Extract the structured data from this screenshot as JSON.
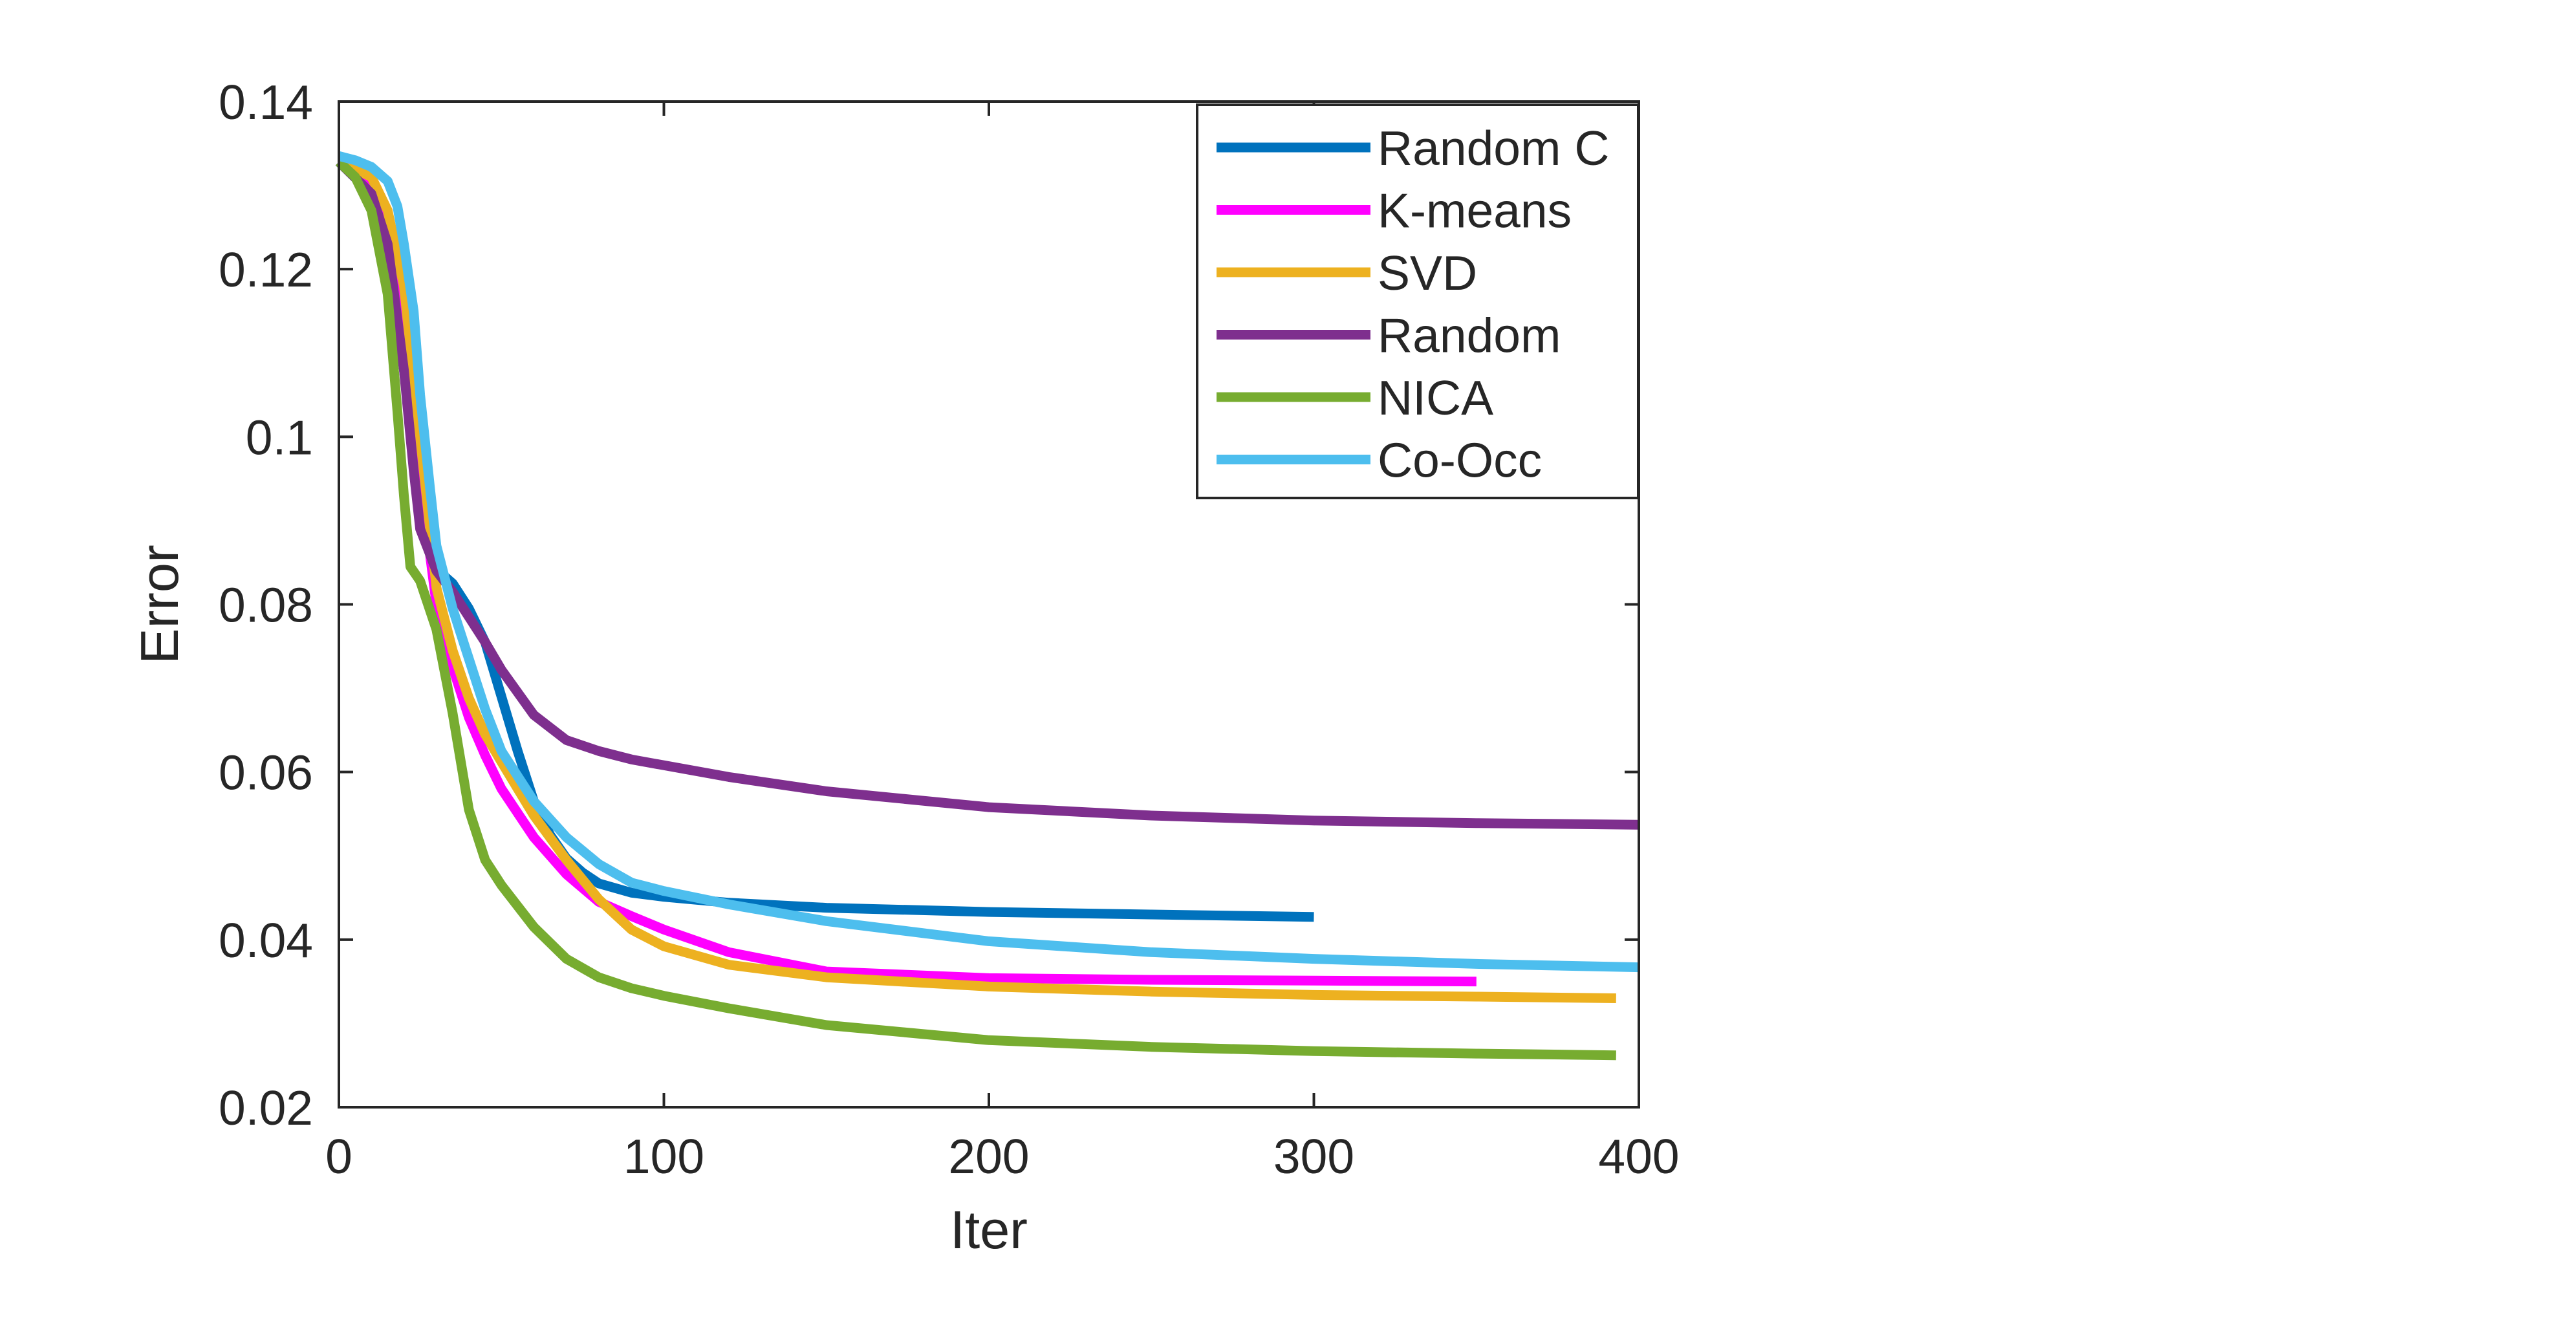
{
  "chart_data": {
    "type": "line",
    "title": "",
    "xlabel": "Iter",
    "ylabel": "Error",
    "xlim": [
      0,
      400
    ],
    "ylim": [
      0.02,
      0.14
    ],
    "xticks": [
      0,
      100,
      200,
      300,
      400
    ],
    "yticks": [
      0.02,
      0.04,
      0.06,
      0.08,
      0.1,
      0.12,
      0.14
    ],
    "xtick_labels": [
      "0",
      "100",
      "200",
      "300",
      "400"
    ],
    "ytick_labels": [
      "0.02",
      "0.04",
      "0.06",
      "0.08",
      "0.1",
      "0.12",
      "0.14"
    ],
    "grid": false,
    "legend_position": "top-right",
    "series": [
      {
        "name": "Random C",
        "color": "#0072bd",
        "x": [
          0,
          10,
          15,
          20,
          25,
          30,
          35,
          40,
          45,
          50,
          55,
          60,
          65,
          70,
          75,
          80,
          90,
          100,
          120,
          150,
          200,
          250,
          300
        ],
        "y": [
          0.1328,
          0.129,
          0.122,
          0.108,
          0.091,
          0.0842,
          0.0825,
          0.0795,
          0.0755,
          0.069,
          0.0625,
          0.0565,
          0.0525,
          0.0497,
          0.048,
          0.0467,
          0.0456,
          0.0451,
          0.0444,
          0.0438,
          0.0433,
          0.043,
          0.0427
        ]
      },
      {
        "name": "K-means",
        "color": "#ff00ff",
        "x": [
          0,
          10,
          15,
          20,
          25,
          30,
          35,
          40,
          45,
          50,
          60,
          70,
          80,
          90,
          100,
          120,
          150,
          200,
          250,
          300,
          350
        ],
        "y": [
          0.1328,
          0.13,
          0.125,
          0.112,
          0.095,
          0.08,
          0.0725,
          0.0665,
          0.062,
          0.058,
          0.0522,
          0.0478,
          0.0445,
          0.0428,
          0.0412,
          0.0385,
          0.0362,
          0.0354,
          0.0352,
          0.0351,
          0.035
        ]
      },
      {
        "name": "SVD",
        "color": "#edb120",
        "x": [
          0,
          10,
          15,
          20,
          25,
          30,
          35,
          40,
          45,
          50,
          60,
          70,
          80,
          90,
          100,
          120,
          150,
          200,
          250,
          300,
          350,
          393
        ],
        "y": [
          0.1328,
          0.131,
          0.127,
          0.118,
          0.1,
          0.082,
          0.0745,
          0.0688,
          0.0645,
          0.0612,
          0.0548,
          0.0495,
          0.0448,
          0.0412,
          0.0392,
          0.037,
          0.0355,
          0.0344,
          0.0338,
          0.0334,
          0.0332,
          0.033
        ]
      },
      {
        "name": "Random",
        "color": "#7e2f8e",
        "x": [
          0,
          10,
          15,
          20,
          23,
          25,
          30,
          35,
          40,
          45,
          50,
          60,
          70,
          80,
          90,
          100,
          120,
          150,
          200,
          250,
          300,
          350,
          400
        ],
        "y": [
          0.1328,
          0.129,
          0.123,
          0.108,
          0.096,
          0.089,
          0.084,
          0.0815,
          0.0785,
          0.0755,
          0.0722,
          0.0668,
          0.0638,
          0.0625,
          0.0615,
          0.0608,
          0.0594,
          0.0577,
          0.0558,
          0.0548,
          0.0542,
          0.0539,
          0.0537
        ]
      },
      {
        "name": "NICA",
        "color": "#77ac30",
        "x": [
          0,
          5,
          10,
          15,
          18,
          20,
          22,
          25,
          30,
          35,
          40,
          45,
          50,
          60,
          70,
          80,
          90,
          100,
          120,
          150,
          200,
          250,
          300,
          350,
          393
        ],
        "y": [
          0.1328,
          0.131,
          0.127,
          0.117,
          0.103,
          0.093,
          0.0845,
          0.0828,
          0.077,
          0.067,
          0.0555,
          0.0495,
          0.0465,
          0.0415,
          0.0377,
          0.0355,
          0.0342,
          0.0333,
          0.0318,
          0.0298,
          0.028,
          0.0272,
          0.0267,
          0.0264,
          0.0262
        ]
      },
      {
        "name": "Co-Occ",
        "color": "#4dbeee",
        "x": [
          0,
          5,
          10,
          15,
          18,
          20,
          23,
          25,
          28,
          30,
          35,
          40,
          45,
          50,
          60,
          70,
          80,
          90,
          100,
          120,
          150,
          200,
          250,
          300,
          350,
          400
        ],
        "y": [
          0.1335,
          0.133,
          0.1322,
          0.1305,
          0.1275,
          0.123,
          0.115,
          0.105,
          0.094,
          0.087,
          0.0795,
          0.0735,
          0.0675,
          0.0625,
          0.0565,
          0.0522,
          0.049,
          0.0468,
          0.0458,
          0.0442,
          0.0422,
          0.0398,
          0.0385,
          0.0377,
          0.0371,
          0.0367
        ]
      }
    ]
  }
}
